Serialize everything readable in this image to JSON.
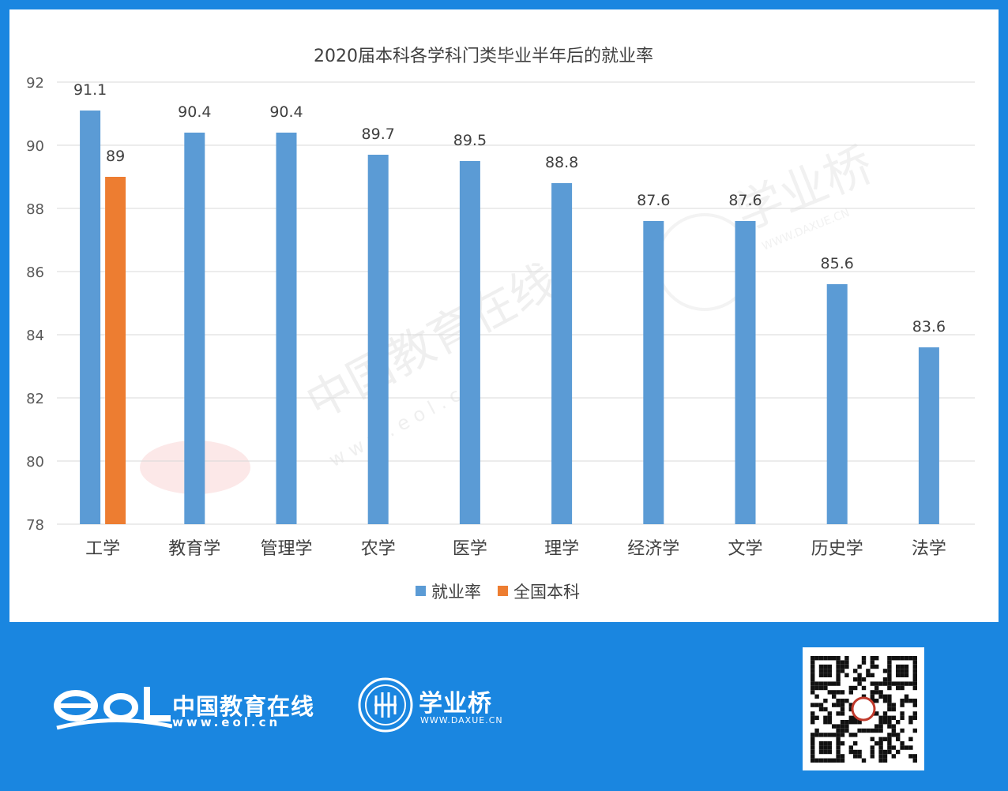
{
  "chart_data": {
    "type": "bar",
    "title": "2020届本科各学科门类毕业半年后的就业率",
    "categories": [
      "工学",
      "教育学",
      "管理学",
      "农学",
      "医学",
      "理学",
      "经济学",
      "文学",
      "历史学",
      "法学"
    ],
    "series": [
      {
        "name": "就业率",
        "color": "#5b9bd5",
        "values": [
          91.1,
          90.4,
          90.4,
          89.7,
          89.5,
          88.8,
          87.6,
          87.6,
          85.6,
          83.6
        ]
      },
      {
        "name": "全国本科",
        "color": "#ed7d31",
        "values": [
          89,
          null,
          null,
          null,
          null,
          null,
          null,
          null,
          null,
          null
        ]
      }
    ],
    "ylim": [
      78,
      92
    ],
    "yticks": [
      78,
      80,
      82,
      84,
      86,
      88,
      90,
      92
    ],
    "grid": true,
    "legend": "bottom",
    "xlabel": "",
    "ylabel": ""
  },
  "watermarks": {
    "eol_cn": "中国教育在线",
    "eol_url": "w w w . e o l . c n",
    "xyq_cn": "学业桥",
    "xyq_url": "WWW.DAXUE.CN"
  },
  "footer": {
    "eol_name": "中国教育在线",
    "eol_url": "www.eol.cn",
    "xyq_name": "学业桥",
    "xyq_url": "WWW.DAXUE.CN"
  },
  "icons": {
    "eol_logo": "eol-logo-icon",
    "seal": "xueyeqiao-seal-icon",
    "qr": "qr-code-icon"
  }
}
